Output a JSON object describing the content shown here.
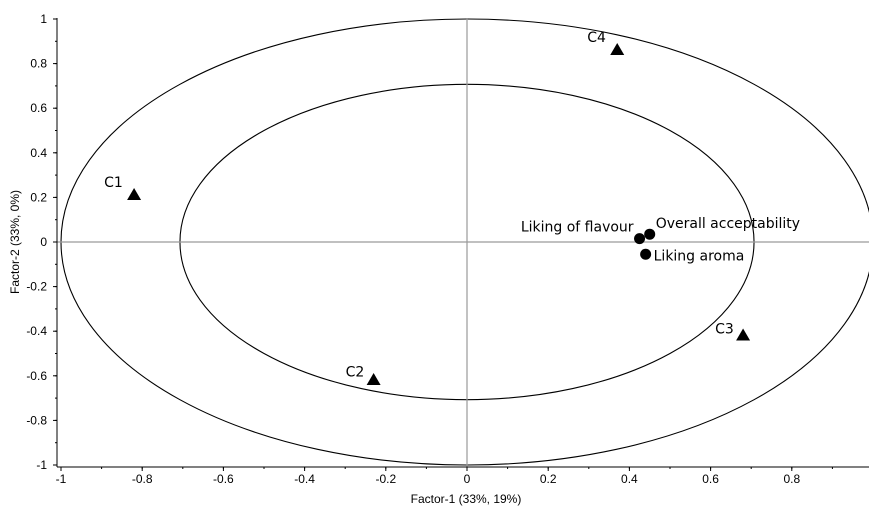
{
  "chart_data": {
    "type": "scatter",
    "title": "",
    "xlabel": "Factor-1 (33%, 19%)",
    "ylabel": "Factor-2 (33%, 0%)",
    "xlim": [
      -1,
      1
    ],
    "ylim": [
      -1,
      1
    ],
    "xticks": [
      -1,
      -0.8,
      -0.6,
      -0.4,
      -0.2,
      0,
      0.2,
      0.4,
      0.6,
      0.8
    ],
    "xtick_labels": [
      "-1",
      "-0.8",
      "-0.6",
      "-0.4",
      "-0.2",
      "0",
      "0.2",
      "0.4",
      "0.6",
      "0.8"
    ],
    "yticks": [
      1,
      0.8,
      0.6,
      0.4,
      0.2,
      0,
      -0.2,
      -0.4,
      -0.6,
      -0.8,
      -1
    ],
    "ytick_labels": [
      "1",
      "0.8",
      "0.6",
      "0.4",
      "0.2",
      "0",
      "-0.2",
      "-0.4",
      "-0.6",
      "-0.8",
      "-1"
    ],
    "grid": false,
    "legend": "none",
    "correlation_ellipses": [
      {
        "rx": 1.0,
        "ry": 1.0
      },
      {
        "rx": 0.707,
        "ry": 0.707
      }
    ],
    "series": [
      {
        "marker": "triangle",
        "points": [
          {
            "label": "C1",
            "x": -0.82,
            "y": 0.21
          },
          {
            "label": "C2",
            "x": -0.23,
            "y": -0.62
          },
          {
            "label": "C3",
            "x": 0.68,
            "y": -0.42
          },
          {
            "label": "C4",
            "x": 0.37,
            "y": 0.86
          }
        ]
      },
      {
        "marker": "circle",
        "points": [
          {
            "label": "Overall acceptability",
            "x": 0.45,
            "y": 0.035
          },
          {
            "label": "Liking of flavour",
            "x": 0.425,
            "y": 0.015
          },
          {
            "label": "Liking aroma",
            "x": 0.44,
            "y": -0.055
          }
        ]
      }
    ]
  }
}
